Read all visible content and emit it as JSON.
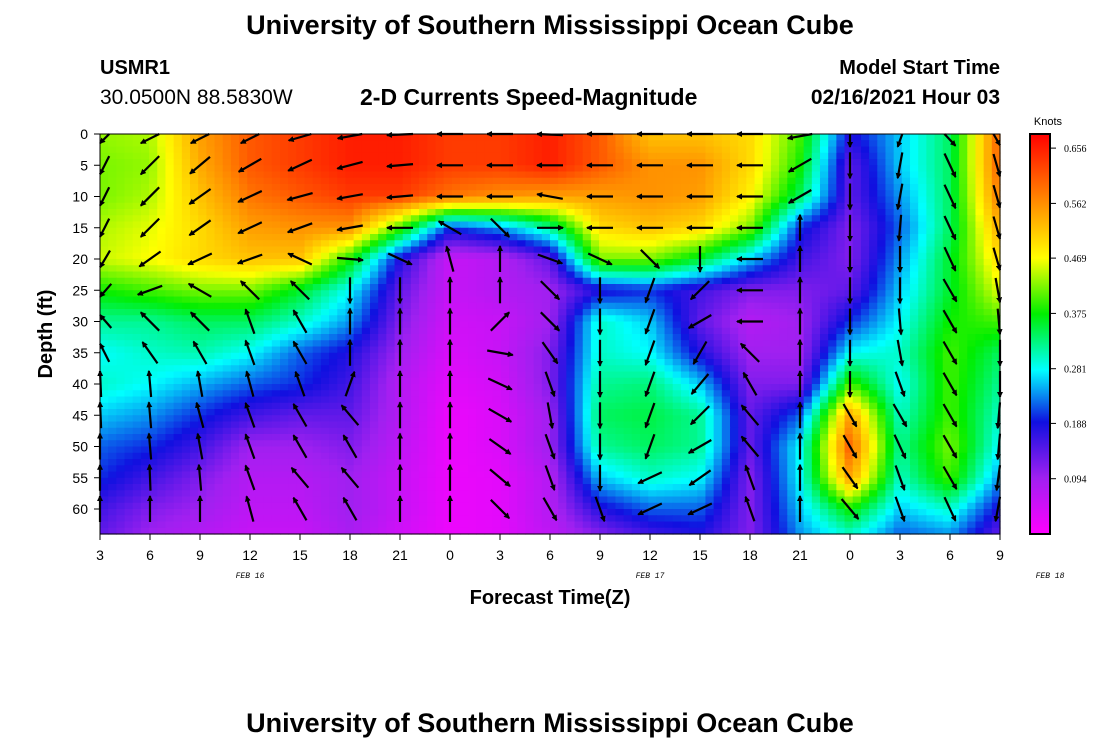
{
  "header": {
    "title": "University of Southern Mississippi Ocean Cube",
    "station_id": "USMR1",
    "station_coords": "30.0500N 88.5830W",
    "plot_title": "2-D Currents Speed-Magnitude",
    "model_label": "Model Start Time",
    "model_time": "02/16/2021 Hour 03"
  },
  "footer": {
    "title": "University of Southern Mississippi Ocean Cube"
  },
  "chart_data": {
    "type": "heatmap",
    "title": "2-D Currents Speed-Magnitude",
    "xlabel": "Forecast Time(Z)",
    "ylabel": "Depth (ft)",
    "x_tick_labels": [
      "3",
      "6",
      "9",
      "12",
      "15",
      "18",
      "21",
      "0",
      "3",
      "6",
      "9",
      "12",
      "15",
      "18",
      "21",
      "0",
      "3",
      "6",
      "9"
    ],
    "x_range_hours": [
      0,
      54
    ],
    "date_labels": [
      {
        "label": "FEB 16",
        "at_hour": 9
      },
      {
        "label": "FEB 17",
        "at_hour": 33
      },
      {
        "label": "FEB 18",
        "at_hour": 57
      }
    ],
    "y_ticks": [
      0,
      5,
      10,
      15,
      20,
      25,
      30,
      35,
      40,
      45,
      50,
      55,
      60
    ],
    "y_range": [
      0,
      64
    ],
    "y_inverted": true,
    "colorbar": {
      "label": "Knots",
      "tick_labels": [
        "0.656",
        "0.562",
        "0.469",
        "0.375",
        "0.281",
        "0.188",
        "0.094"
      ],
      "range": [
        0,
        0.68
      ]
    },
    "speed_grid": {
      "depths": [
        0,
        5,
        10,
        15,
        20,
        25,
        30,
        35,
        40,
        45,
        50,
        55,
        60,
        64
      ],
      "hours": [
        0,
        3,
        6,
        9,
        12,
        15,
        18,
        21,
        24,
        27,
        30,
        33,
        36,
        39,
        42,
        45,
        48,
        51,
        54
      ],
      "values": [
        [
          0.43,
          0.44,
          0.55,
          0.6,
          0.62,
          0.64,
          0.64,
          0.62,
          0.62,
          0.64,
          0.6,
          0.52,
          0.52,
          0.5,
          0.4,
          0.18,
          0.26,
          0.34,
          0.6
        ],
        [
          0.42,
          0.43,
          0.54,
          0.6,
          0.62,
          0.64,
          0.64,
          0.62,
          0.62,
          0.64,
          0.6,
          0.56,
          0.56,
          0.5,
          0.38,
          0.14,
          0.26,
          0.34,
          0.6
        ],
        [
          0.42,
          0.44,
          0.52,
          0.58,
          0.6,
          0.62,
          0.62,
          0.58,
          0.56,
          0.55,
          0.55,
          0.56,
          0.55,
          0.48,
          0.34,
          0.14,
          0.24,
          0.34,
          0.58
        ],
        [
          0.44,
          0.46,
          0.5,
          0.55,
          0.56,
          0.56,
          0.4,
          0.2,
          0.24,
          0.32,
          0.5,
          0.52,
          0.5,
          0.42,
          0.2,
          0.12,
          0.22,
          0.34,
          0.54
        ],
        [
          0.45,
          0.47,
          0.5,
          0.52,
          0.52,
          0.38,
          0.18,
          0.06,
          0.08,
          0.14,
          0.42,
          0.42,
          0.36,
          0.26,
          0.16,
          0.12,
          0.24,
          0.36,
          0.5
        ],
        [
          0.38,
          0.4,
          0.42,
          0.42,
          0.36,
          0.28,
          0.14,
          0.06,
          0.08,
          0.1,
          0.18,
          0.2,
          0.16,
          0.12,
          0.12,
          0.14,
          0.26,
          0.36,
          0.46
        ],
        [
          0.32,
          0.32,
          0.34,
          0.34,
          0.3,
          0.24,
          0.12,
          0.05,
          0.06,
          0.1,
          0.3,
          0.26,
          0.14,
          0.08,
          0.1,
          0.2,
          0.28,
          0.38,
          0.4
        ],
        [
          0.28,
          0.3,
          0.31,
          0.28,
          0.22,
          0.18,
          0.1,
          0.04,
          0.06,
          0.12,
          0.3,
          0.28,
          0.18,
          0.1,
          0.1,
          0.28,
          0.3,
          0.4,
          0.34
        ],
        [
          0.3,
          0.28,
          0.25,
          0.22,
          0.2,
          0.16,
          0.08,
          0.03,
          0.05,
          0.12,
          0.32,
          0.33,
          0.26,
          0.12,
          0.12,
          0.4,
          0.28,
          0.4,
          0.32
        ],
        [
          0.26,
          0.24,
          0.2,
          0.16,
          0.14,
          0.14,
          0.08,
          0.02,
          0.04,
          0.1,
          0.34,
          0.35,
          0.32,
          0.14,
          0.22,
          0.55,
          0.3,
          0.4,
          0.3
        ],
        [
          0.22,
          0.2,
          0.16,
          0.1,
          0.1,
          0.12,
          0.07,
          0.02,
          0.04,
          0.1,
          0.32,
          0.34,
          0.32,
          0.14,
          0.28,
          0.6,
          0.32,
          0.42,
          0.28
        ],
        [
          0.2,
          0.16,
          0.12,
          0.08,
          0.08,
          0.1,
          0.06,
          0.02,
          0.03,
          0.08,
          0.26,
          0.3,
          0.28,
          0.12,
          0.28,
          0.55,
          0.3,
          0.4,
          0.24
        ],
        [
          0.16,
          0.12,
          0.1,
          0.07,
          0.07,
          0.1,
          0.06,
          0.02,
          0.03,
          0.08,
          0.18,
          0.22,
          0.22,
          0.12,
          0.26,
          0.38,
          0.26,
          0.3,
          0.18
        ],
        [
          0.14,
          0.1,
          0.08,
          0.06,
          0.06,
          0.09,
          0.05,
          0.02,
          0.03,
          0.07,
          0.12,
          0.16,
          0.18,
          0.12,
          0.24,
          0.3,
          0.22,
          0.24,
          0.14
        ]
      ]
    },
    "vectors": {
      "hours": [
        0,
        3,
        6,
        9,
        12,
        15,
        18,
        21,
        24,
        27,
        30,
        33,
        36,
        39,
        42,
        45,
        48,
        51,
        54
      ],
      "depths": [
        0,
        5,
        10,
        15,
        20,
        25,
        30,
        35,
        40,
        45,
        50,
        55,
        60
      ],
      "directions_deg": [
        [
          225,
          225,
          225,
          225,
          240,
          250,
          265,
          270,
          270,
          275,
          270,
          270,
          270,
          270,
          250,
          180,
          190,
          155,
          150
        ],
        [
          225,
          225,
          230,
          240,
          245,
          255,
          265,
          270,
          270,
          270,
          270,
          270,
          270,
          270,
          240,
          180,
          190,
          155,
          150
        ],
        [
          225,
          225,
          235,
          245,
          255,
          260,
          265,
          270,
          270,
          280,
          270,
          270,
          270,
          270,
          240,
          180,
          190,
          155,
          150
        ],
        [
          225,
          225,
          235,
          245,
          250,
          260,
          270,
          300,
          135,
          90,
          270,
          270,
          270,
          270,
          0,
          180,
          185,
          155,
          150
        ],
        [
          230,
          235,
          245,
          250,
          295,
          95,
          115,
          345,
          0,
          110,
          115,
          135,
          180,
          270,
          0,
          180,
          180,
          155,
          150
        ],
        [
          240,
          250,
          300,
          315,
          315,
          180,
          180,
          0,
          0,
          135,
          180,
          200,
          225,
          270,
          0,
          180,
          180,
          150,
          160
        ],
        [
          300,
          315,
          315,
          340,
          330,
          0,
          0,
          0,
          45,
          135,
          180,
          200,
          240,
          270,
          0,
          180,
          175,
          150,
          170
        ],
        [
          315,
          325,
          330,
          340,
          330,
          0,
          0,
          0,
          100,
          145,
          180,
          200,
          210,
          315,
          0,
          180,
          170,
          150,
          180
        ],
        [
          355,
          355,
          350,
          345,
          340,
          20,
          0,
          0,
          115,
          160,
          180,
          200,
          220,
          330,
          0,
          180,
          160,
          150,
          180
        ],
        [
          355,
          355,
          345,
          340,
          330,
          320,
          0,
          0,
          120,
          170,
          180,
          200,
          225,
          320,
          0,
          150,
          150,
          150,
          190
        ],
        [
          0,
          355,
          350,
          340,
          330,
          330,
          0,
          0,
          125,
          160,
          180,
          200,
          240,
          320,
          0,
          150,
          155,
          150,
          190
        ],
        [
          0,
          358,
          355,
          340,
          320,
          320,
          0,
          0,
          130,
          160,
          180,
          245,
          235,
          340,
          0,
          145,
          160,
          150,
          195
        ],
        [
          0,
          360,
          360,
          345,
          330,
          330,
          0,
          0,
          135,
          150,
          160,
          245,
          245,
          340,
          0,
          140,
          160,
          155,
          200
        ]
      ]
    }
  }
}
